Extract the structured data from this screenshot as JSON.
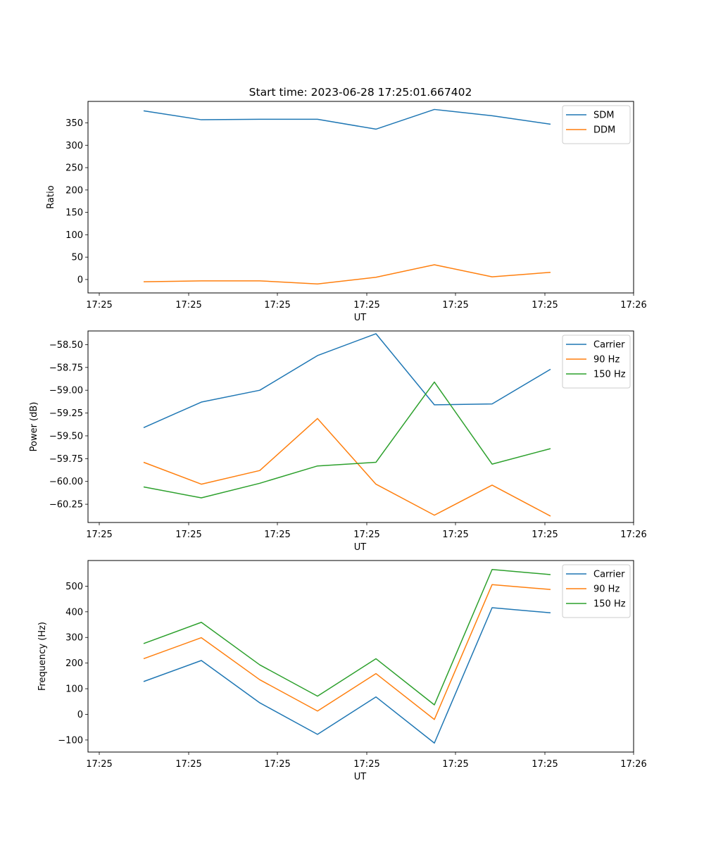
{
  "figure": {
    "title": "Start time: 2023-06-28 17:25:01.667402"
  },
  "chart_data": [
    {
      "type": "line",
      "title": "Start time: 2023-06-28 17:25:01.667402",
      "xlabel": "UT",
      "ylabel": "Ratio",
      "xtick_labels": [
        "17:25",
        "17:25",
        "17:25",
        "17:25",
        "17:25",
        "17:25",
        "17:26"
      ],
      "ytick_values": [
        0,
        50,
        100,
        150,
        200,
        250,
        300,
        350
      ],
      "ytick_labels": [
        "0",
        "50",
        "100",
        "150",
        "200",
        "250",
        "300",
        "350"
      ],
      "ylim": [
        -30,
        398
      ],
      "grid": false,
      "legend_position": "top-right",
      "x": [
        1,
        2,
        3,
        4,
        5,
        6,
        7,
        8
      ],
      "series": [
        {
          "name": "SDM",
          "color": "#1f77b4",
          "values": [
            377,
            357,
            358,
            358,
            336,
            380,
            366,
            347
          ]
        },
        {
          "name": "DDM",
          "color": "#ff7f0e",
          "values": [
            -5,
            -3,
            -3,
            -10,
            5,
            33,
            6,
            16
          ]
        }
      ]
    },
    {
      "type": "line",
      "xlabel": "UT",
      "ylabel": "Power (dB)",
      "xtick_labels": [
        "17:25",
        "17:25",
        "17:25",
        "17:25",
        "17:25",
        "17:25",
        "17:26"
      ],
      "ytick_values": [
        -58.5,
        -58.75,
        -59.0,
        -59.25,
        -59.5,
        -59.75,
        -60.0,
        -60.25
      ],
      "ytick_labels": [
        "−58.50",
        "−58.75",
        "−59.00",
        "−59.25",
        "−59.50",
        "−59.75",
        "−60.00",
        "−60.25"
      ],
      "ylim": [
        -60.45,
        -58.35
      ],
      "grid": false,
      "legend_position": "top-right",
      "x": [
        1,
        2,
        3,
        4,
        5,
        6,
        7,
        8
      ],
      "series": [
        {
          "name": "Carrier",
          "color": "#1f77b4",
          "values": [
            -59.41,
            -59.13,
            -59.0,
            -58.62,
            -58.38,
            -59.16,
            -59.15,
            -58.77
          ]
        },
        {
          "name": "90 Hz",
          "color": "#ff7f0e",
          "values": [
            -59.79,
            -60.03,
            -59.88,
            -59.31,
            -60.03,
            -60.37,
            -60.04,
            -60.38
          ]
        },
        {
          "name": "150 Hz",
          "color": "#2ca02c",
          "values": [
            -60.06,
            -60.18,
            -60.02,
            -59.83,
            -59.79,
            -58.91,
            -59.81,
            -59.64
          ]
        }
      ]
    },
    {
      "type": "line",
      "xlabel": "UT",
      "ylabel": "Frequency (Hz)",
      "xtick_labels": [
        "17:25",
        "17:25",
        "17:25",
        "17:25",
        "17:25",
        "17:25",
        "17:26"
      ],
      "ytick_values": [
        -100,
        0,
        100,
        200,
        300,
        400,
        500
      ],
      "ytick_labels": [
        "−100",
        "0",
        "100",
        "200",
        "300",
        "400",
        "500"
      ],
      "ylim": [
        -147,
        600
      ],
      "grid": false,
      "legend_position": "top-right",
      "x": [
        1,
        2,
        3,
        4,
        5,
        6,
        7,
        8
      ],
      "series": [
        {
          "name": "Carrier",
          "color": "#1f77b4",
          "values": [
            128,
            210,
            45,
            -78,
            68,
            -112,
            416,
            396
          ]
        },
        {
          "name": "90 Hz",
          "color": "#ff7f0e",
          "values": [
            217,
            299,
            135,
            13,
            159,
            -20,
            506,
            487
          ]
        },
        {
          "name": "150 Hz",
          "color": "#2ca02c",
          "values": [
            276,
            359,
            193,
            71,
            217,
            37,
            565,
            545
          ]
        }
      ]
    }
  ]
}
